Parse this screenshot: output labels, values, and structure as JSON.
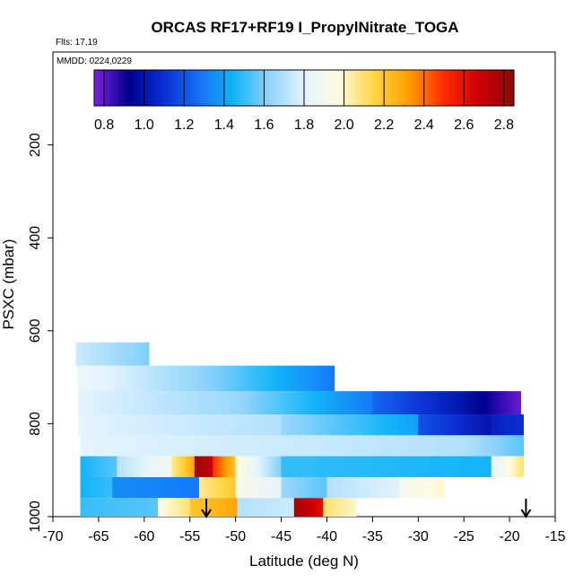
{
  "chart_data": {
    "type": "heatmap",
    "title": "ORCAS RF17+RF19 I_PropylNitrate_TOGA",
    "subtitle_flights": "Flts: 17,19",
    "subtitle_dates": "MMDD: 0224,0229",
    "xlabel": "Latitude (deg N)",
    "ylabel": "PSXC (mbar)",
    "xlim": [
      -70,
      -15
    ],
    "ylim": [
      1000,
      0
    ],
    "x_ticks": [
      -70,
      -65,
      -60,
      -55,
      -50,
      -45,
      -40,
      -35,
      -30,
      -25,
      -20,
      -15
    ],
    "y_ticks": [
      200,
      400,
      600,
      800,
      1000
    ],
    "colorbar": {
      "range": [
        0.75,
        2.85
      ],
      "ticks": [
        0.8,
        1.0,
        1.2,
        1.4,
        1.6,
        1.8,
        2.0,
        2.2,
        2.4,
        2.6,
        2.8
      ],
      "colors": [
        "#7c1fe0",
        "#00008c",
        "#0a2fd2",
        "#1670f5",
        "#12b4f8",
        "#8fd3fb",
        "#e4f4ff",
        "#fffbe0",
        "#ffd640",
        "#ff9f00",
        "#ff2a00",
        "#cc0005",
        "#8a0a0a"
      ]
    },
    "markers": [
      {
        "label": "arrow",
        "latitude": -53.2
      },
      {
        "label": "arrow",
        "latitude": -18.2
      }
    ],
    "bands": [
      {
        "p_min": 625,
        "p_max": 675,
        "segments": [
          {
            "lat": [
              -67.5,
              -59.5
            ],
            "v": [
              1.75,
              1.6
            ]
          }
        ]
      },
      {
        "p_min": 675,
        "p_max": 730,
        "segments": [
          {
            "lat": [
              -67.3,
              -52
            ],
            "v": [
              1.85,
              1.6
            ]
          },
          {
            "lat": [
              -52,
              -39.2
            ],
            "v": [
              1.6,
              1.3
            ]
          }
        ]
      },
      {
        "p_min": 730,
        "p_max": 780,
        "segments": [
          {
            "lat": [
              -67.2,
              -50
            ],
            "v": [
              1.8,
              1.65
            ]
          },
          {
            "lat": [
              -50,
              -35
            ],
            "v": [
              1.65,
              1.3
            ]
          },
          {
            "lat": [
              -35,
              -25
            ],
            "v": [
              1.25,
              1.0
            ]
          },
          {
            "lat": [
              -25,
              -18.8
            ],
            "v": [
              1.0,
              0.78
            ]
          }
        ]
      },
      {
        "p_min": 780,
        "p_max": 825,
        "segments": [
          {
            "lat": [
              -67.2,
              -45
            ],
            "v": [
              1.8,
              1.7
            ]
          },
          {
            "lat": [
              -45,
              -30
            ],
            "v": [
              1.65,
              1.4
            ]
          },
          {
            "lat": [
              -30,
              -22
            ],
            "v": [
              1.2,
              1.0
            ]
          },
          {
            "lat": [
              -22,
              -18.5
            ],
            "v": [
              1.05,
              1.1
            ]
          }
        ]
      },
      {
        "p_min": 825,
        "p_max": 870,
        "segments": [
          {
            "lat": [
              -67,
              -45
            ],
            "v": [
              1.8,
              1.75
            ]
          },
          {
            "lat": [
              -45,
              -25
            ],
            "v": [
              1.75,
              1.7
            ]
          },
          {
            "lat": [
              -25,
              -18.5
            ],
            "v": [
              1.7,
              1.55
            ]
          }
        ]
      },
      {
        "p_min": 870,
        "p_max": 915,
        "segments": [
          {
            "lat": [
              -67,
              -63
            ],
            "v": [
              1.45,
              1.55
            ]
          },
          {
            "lat": [
              -63,
              -57
            ],
            "v": [
              1.7,
              1.9
            ]
          },
          {
            "lat": [
              -57,
              -54.5
            ],
            "v": [
              2.05,
              2.3
            ]
          },
          {
            "lat": [
              -54.5,
              -52.5
            ],
            "v": [
              2.8,
              2.7
            ]
          },
          {
            "lat": [
              -52.5,
              -50
            ],
            "v": [
              2.5,
              2.2
            ]
          },
          {
            "lat": [
              -50,
              -45
            ],
            "v": [
              2.0,
              1.6
            ]
          },
          {
            "lat": [
              -45,
              -22
            ],
            "v": [
              1.5,
              1.45
            ]
          },
          {
            "lat": [
              -22,
              -18.5
            ],
            "v": [
              1.8,
              2.1
            ]
          }
        ]
      },
      {
        "p_min": 915,
        "p_max": 960,
        "segments": [
          {
            "lat": [
              -67,
              -63.5
            ],
            "v": [
              1.45,
              1.5
            ]
          },
          {
            "lat": [
              -63.5,
              -54
            ],
            "v": [
              1.35,
              1.3
            ]
          },
          {
            "lat": [
              -54,
              -50
            ],
            "v": [
              2.05,
              2.2
            ]
          },
          {
            "lat": [
              -50,
              -45
            ],
            "v": [
              1.95,
              1.8
            ]
          },
          {
            "lat": [
              -45,
              -40
            ],
            "v": [
              1.65,
              1.55
            ]
          },
          {
            "lat": [
              -40,
              -32
            ],
            "v": [
              1.7,
              1.8
            ]
          },
          {
            "lat": [
              -32,
              -27.2
            ],
            "v": [
              1.9,
              2.0
            ]
          }
        ]
      },
      {
        "p_min": 960,
        "p_max": 1000,
        "segments": [
          {
            "lat": [
              -67,
              -58.5
            ],
            "v": [
              1.5,
              1.55
            ]
          },
          {
            "lat": [
              -58.5,
              -55
            ],
            "v": [
              1.95,
              2.1
            ]
          },
          {
            "lat": [
              -55,
              -49.8
            ],
            "v": [
              2.2,
              2.3
            ]
          },
          {
            "lat": [
              -49.8,
              -43.6
            ],
            "v": [
              1.7,
              1.75
            ]
          },
          {
            "lat": [
              -43.6,
              -40.4
            ],
            "v": [
              2.8,
              2.6
            ]
          },
          {
            "lat": [
              -40.4,
              -36.8
            ],
            "v": [
              2.1,
              2.0
            ]
          }
        ]
      }
    ]
  }
}
